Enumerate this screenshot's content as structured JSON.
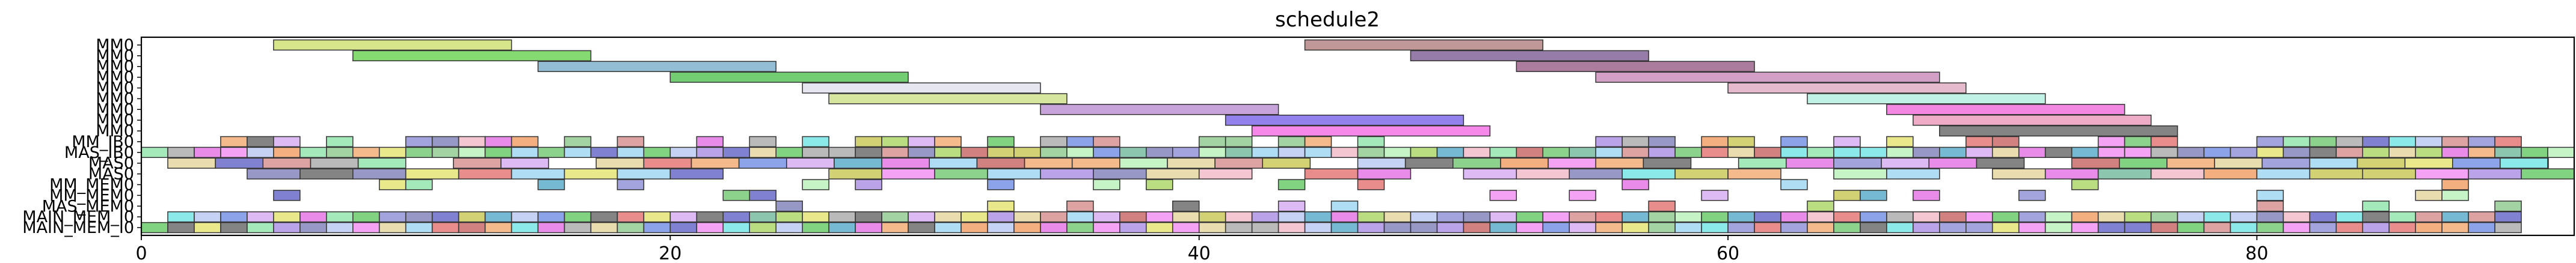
{
  "chart_data": {
    "type": "gantt",
    "title": "schedule2",
    "xlabel": "",
    "ylabel": "",
    "xlim": [
      0,
      92
    ],
    "xticks": [
      0,
      20,
      40,
      60,
      80
    ],
    "grid": false,
    "legend": "none",
    "rows": [
      "MM0",
      "MM0",
      "MM0",
      "MM0",
      "MM0",
      "MM0",
      "MM0",
      "MM0",
      "MM0",
      "MM_IB0",
      "MAS_IB0",
      "MAS0",
      "MAS0",
      "MM_MEM0",
      "MM_MEM0",
      "MAS_MEM0",
      "MAIN_MEM_I0",
      "MAIN_MEM_I0"
    ],
    "mm_tasks": [
      {
        "row": 0,
        "start": 5,
        "end": 14,
        "color": "#c8dd5e"
      },
      {
        "row": 0,
        "start": 44,
        "end": 53,
        "color": "#a97070"
      },
      {
        "row": 1,
        "start": 8,
        "end": 17,
        "color": "#58cc3c"
      },
      {
        "row": 1,
        "start": 48,
        "end": 57,
        "color": "#6e4a86"
      },
      {
        "row": 2,
        "start": 15,
        "end": 24,
        "color": "#6aa4c4"
      },
      {
        "row": 2,
        "start": 52,
        "end": 61,
        "color": "#8c4a78"
      },
      {
        "row": 3,
        "start": 20,
        "end": 29,
        "color": "#3dbb3d"
      },
      {
        "row": 3,
        "start": 55,
        "end": 68,
        "color": "#c07ab0"
      },
      {
        "row": 4,
        "start": 25,
        "end": 34,
        "color": "#dcdcec"
      },
      {
        "row": 4,
        "start": 60,
        "end": 69,
        "color": "#dba0b8"
      },
      {
        "row": 5,
        "start": 26,
        "end": 35,
        "color": "#c8dd7a"
      },
      {
        "row": 5,
        "start": 63,
        "end": 72,
        "color": "#a8eedc"
      },
      {
        "row": 6,
        "start": 34,
        "end": 43,
        "color": "#b282cc"
      },
      {
        "row": 6,
        "start": 66,
        "end": 75,
        "color": "#ee5ad8"
      },
      {
        "row": 7,
        "start": 41,
        "end": 50,
        "color": "#6a52e8"
      },
      {
        "row": 7,
        "start": 67,
        "end": 76,
        "color": "#e88cb0"
      },
      {
        "row": 8,
        "start": 42,
        "end": 51,
        "color": "#f25ae0"
      },
      {
        "row": 8,
        "start": 68,
        "end": 77,
        "color": "#555555"
      }
    ],
    "dense_rows": [
      {
        "row": 9,
        "start": 2,
        "end": 90,
        "step": 1,
        "seed": 7,
        "fill": 0.5
      },
      {
        "row": 10,
        "start": 0,
        "end": 92,
        "step": 1,
        "seed": 11,
        "fill": 1.0
      },
      {
        "row": 11,
        "start": 1,
        "end": 91,
        "step": 1.8,
        "seed": 19,
        "fill": 0.9
      },
      {
        "row": 12,
        "start": 2,
        "end": 92,
        "step": 2,
        "seed": 23,
        "fill": 0.85
      },
      {
        "row": 13,
        "start": 1,
        "end": 90,
        "step": 1,
        "seed": 29,
        "fill": 0.15
      },
      {
        "row": 14,
        "start": 1,
        "end": 90,
        "step": 1,
        "seed": 31,
        "fill": 0.15
      },
      {
        "row": 15,
        "start": 1,
        "end": 90,
        "step": 1,
        "seed": 37,
        "fill": 0.15
      },
      {
        "row": 16,
        "start": 1,
        "end": 90,
        "step": 1,
        "seed": 41,
        "fill": 1.0
      },
      {
        "row": 17,
        "start": 0,
        "end": 90,
        "step": 1,
        "seed": 43,
        "fill": 1.0
      }
    ],
    "palette": [
      "#e06060",
      "#60c060",
      "#6080e0",
      "#e0e060",
      "#60e0e0",
      "#e060e0",
      "#a0a0a0",
      "#f0a060",
      "#80e0a0",
      "#a080e0",
      "#c0c040",
      "#40a0c0",
      "#d08080",
      "#80c080",
      "#8080d0",
      "#555555",
      "#f0b0c0",
      "#b0f0b0",
      "#b0c0f0",
      "#e0d090",
      "#7070b0",
      "#c05050",
      "#50c050",
      "#5050c0",
      "#f080f0",
      "#90d0f0",
      "#d0a0f0",
      "#a0d050",
      "#f09050",
      "#60b090"
    ]
  }
}
